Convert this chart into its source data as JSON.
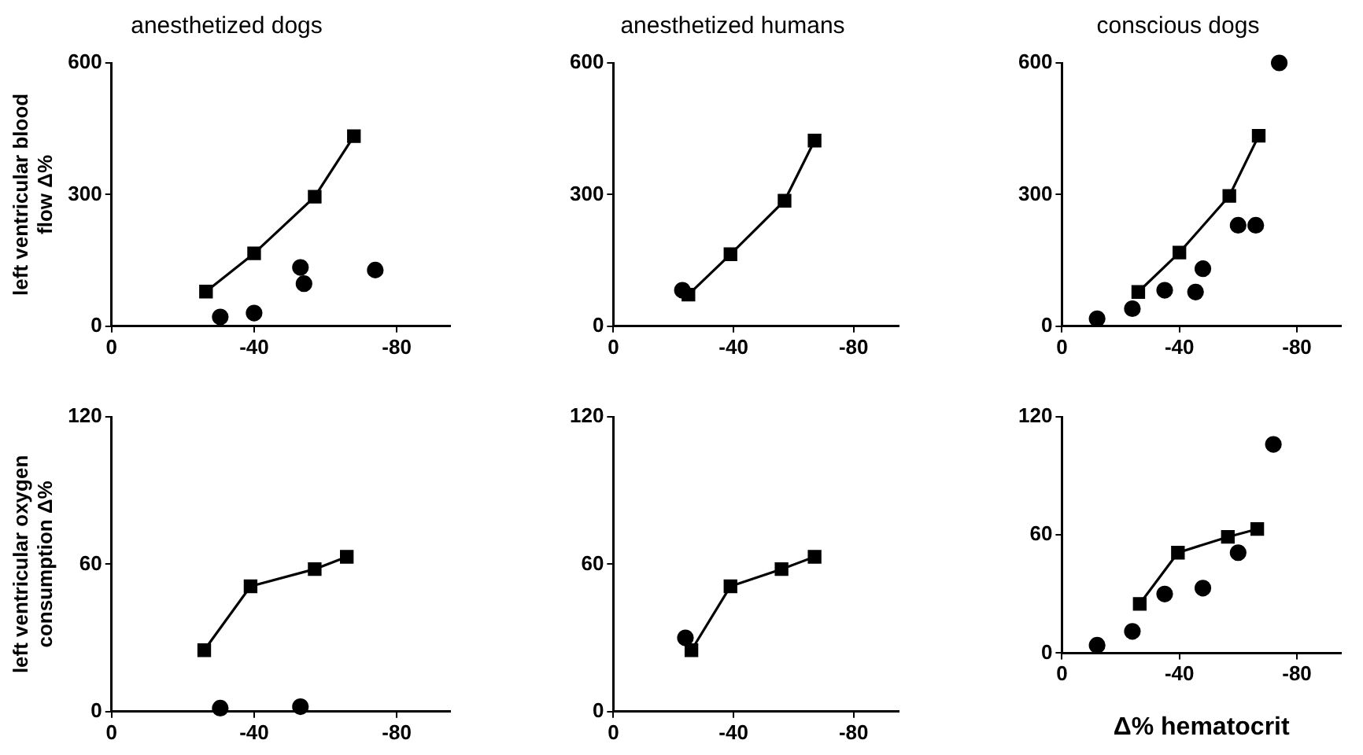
{
  "chart_data": [
    {
      "type": "line",
      "title": "anesthetized dogs",
      "ylabel": "left ventricular blood flow Δ%",
      "xlim": [
        0,
        -95
      ],
      "xticks": [
        0,
        -40,
        -80
      ],
      "ylim": [
        0,
        600
      ],
      "yticks": [
        0,
        300,
        600
      ],
      "series": [
        {
          "marker": "square",
          "color": "#000000",
          "x": [
            -26.5,
            -40,
            -57,
            -68
          ],
          "values": [
            79,
            166,
            295,
            433
          ]
        },
        {
          "type": "scatter",
          "marker": "circle",
          "color": "#000000",
          "x": [
            -30.5,
            -40,
            -53,
            -54,
            -74
          ],
          "values": [
            21,
            30,
            134,
            97,
            128
          ]
        }
      ]
    },
    {
      "type": "line",
      "title": "anesthetized humans",
      "xlim": [
        0,
        -95
      ],
      "xticks": [
        0,
        -40,
        -80
      ],
      "ylim": [
        0,
        600
      ],
      "yticks": [
        0,
        300,
        600
      ],
      "series": [
        {
          "marker": "square",
          "color": "#000000",
          "x": [
            -25,
            -39,
            -57,
            -67
          ],
          "values": [
            72,
            164,
            286,
            423
          ]
        },
        {
          "type": "scatter",
          "marker": "circle",
          "color": "#000000",
          "x": [
            -23
          ],
          "values": [
            82
          ]
        }
      ]
    },
    {
      "type": "line",
      "title": "conscious dogs",
      "xlim": [
        0,
        -95
      ],
      "xticks": [
        0,
        -40,
        -80
      ],
      "ylim": [
        0,
        600
      ],
      "yticks": [
        0,
        300,
        600
      ],
      "series": [
        {
          "marker": "square",
          "color": "#000000",
          "x": [
            -26,
            -40,
            -57,
            -67
          ],
          "values": [
            78,
            168,
            297,
            434
          ]
        },
        {
          "type": "scatter",
          "marker": "circle",
          "color": "#000000",
          "x": [
            -12,
            -24,
            -35,
            -45.5,
            -48,
            -60,
            -66,
            -74
          ],
          "values": [
            17,
            40,
            82,
            78,
            131,
            230,
            230,
            600
          ]
        }
      ]
    },
    {
      "type": "line",
      "ylabel": "left ventricular oxygen consumption Δ%",
      "xlim": [
        0,
        -95
      ],
      "xticks": [
        0,
        -40,
        -80
      ],
      "ylim": [
        0,
        120
      ],
      "yticks": [
        0,
        60,
        120
      ],
      "series": [
        {
          "marker": "square",
          "color": "#000000",
          "x": [
            -26,
            -39,
            -57,
            -66
          ],
          "values": [
            25,
            51,
            58,
            63
          ]
        },
        {
          "type": "scatter",
          "marker": "circle",
          "color": "#000000",
          "x": [
            -30.5,
            -53
          ],
          "values": [
            1.4,
            2
          ]
        }
      ]
    },
    {
      "type": "line",
      "xlim": [
        0,
        -95
      ],
      "xticks": [
        0,
        -40,
        -80
      ],
      "ylim": [
        0,
        120
      ],
      "yticks": [
        0,
        60,
        120
      ],
      "series": [
        {
          "marker": "square",
          "color": "#000000",
          "x": [
            -26,
            -39,
            -56,
            -67
          ],
          "values": [
            25,
            51,
            58,
            63
          ]
        },
        {
          "type": "scatter",
          "marker": "circle",
          "color": "#000000",
          "x": [
            -24
          ],
          "values": [
            30
          ]
        }
      ]
    },
    {
      "type": "line",
      "xlabel": "Δ% hematocrit",
      "xlim": [
        0,
        -95
      ],
      "xticks": [
        0,
        -40,
        -80
      ],
      "ylim": [
        0,
        120
      ],
      "yticks": [
        0,
        60,
        120
      ],
      "series": [
        {
          "marker": "square",
          "color": "#000000",
          "x": [
            -26.5,
            -39.5,
            -56.5,
            -66.5
          ],
          "values": [
            25,
            51,
            59,
            63
          ]
        },
        {
          "type": "scatter",
          "marker": "circle",
          "color": "#000000",
          "x": [
            -12,
            -24,
            -35,
            -48,
            -60,
            -72
          ],
          "values": [
            4,
            11,
            30,
            33,
            51,
            106
          ]
        }
      ]
    }
  ]
}
